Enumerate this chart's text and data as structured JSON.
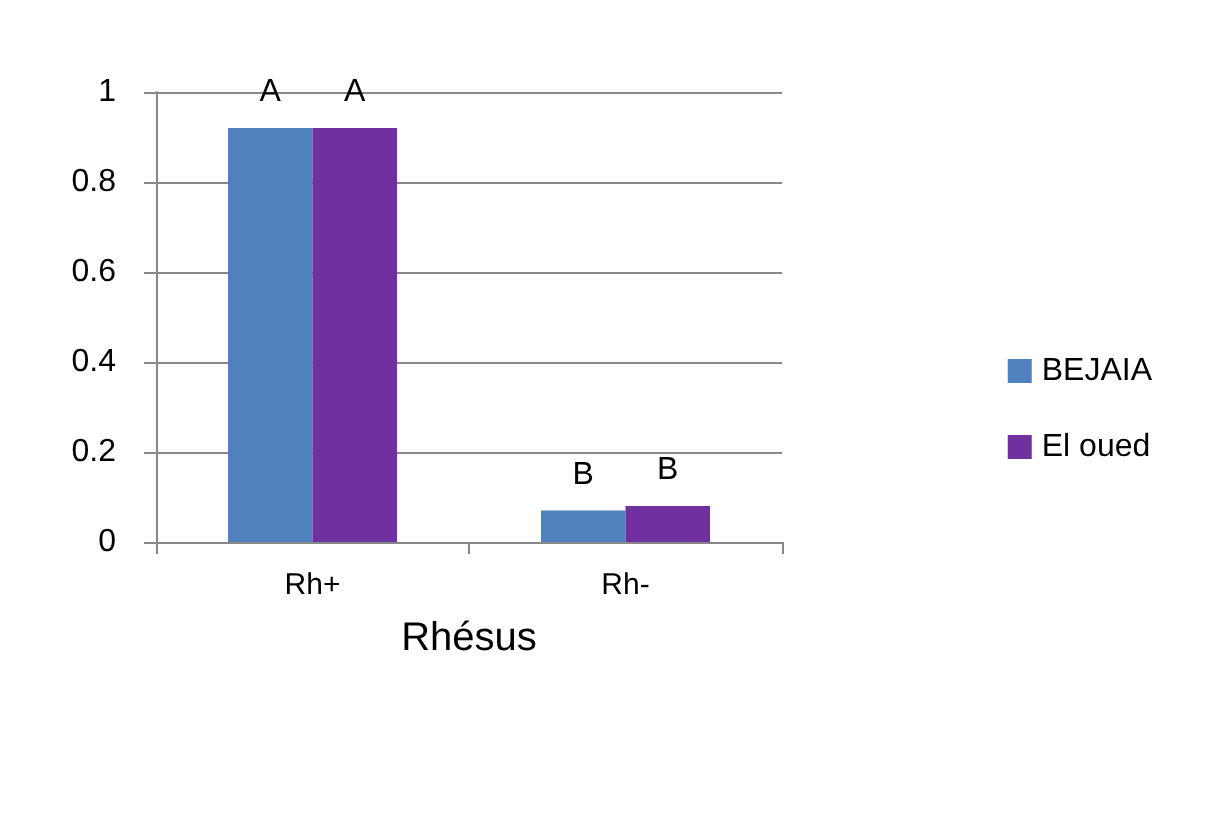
{
  "chart_data": {
    "type": "bar",
    "xlabel": "Rhésus",
    "categories": [
      "Rh+",
      "Rh-"
    ],
    "series": [
      {
        "name": "BEJAIA",
        "color": "#4f81bd",
        "values": [
          0.92,
          0.07
        ],
        "value_labels": [
          "A",
          "B"
        ]
      },
      {
        "name": "El oued",
        "color": "#7030a0",
        "values": [
          0.92,
          0.08
        ],
        "value_labels": [
          "A",
          "B"
        ]
      }
    ],
    "ylim": [
      0,
      1
    ],
    "yticks": [
      0,
      0.2,
      0.4,
      0.6,
      0.8,
      1
    ],
    "grid": "y",
    "legend": "right"
  }
}
